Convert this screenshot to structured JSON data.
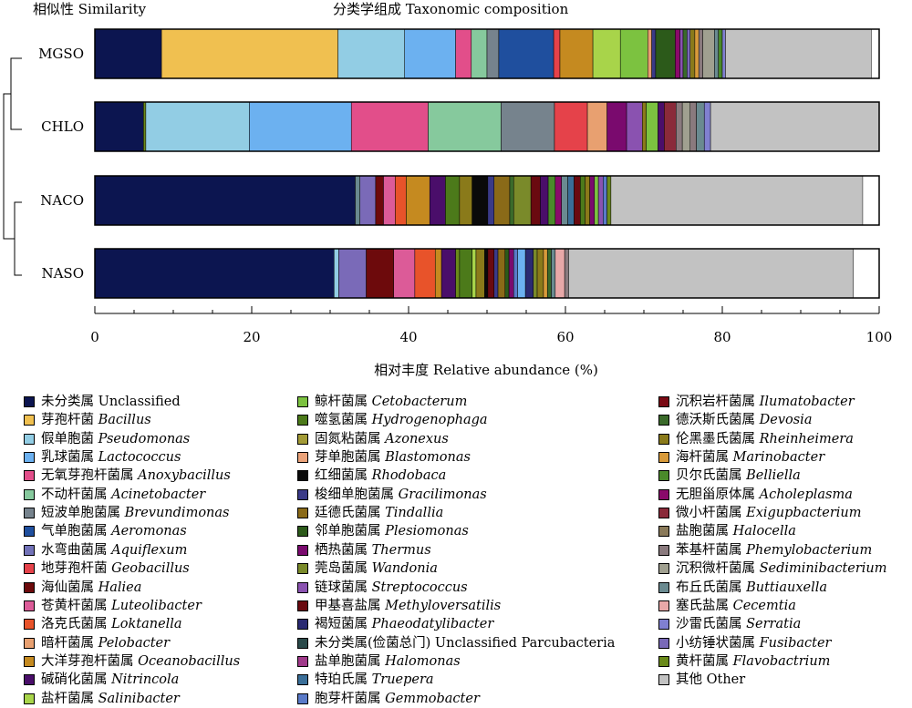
{
  "chart_data": {
    "type": "bar",
    "orientation": "horizontal-stacked",
    "title": "分类学组成 Taxonomic composition",
    "dendrogram_title": "相似性 Similarity",
    "xlabel": "相对丰度 Relative abundance (%)",
    "xlim": [
      0,
      100
    ],
    "xticks": [
      "0",
      "20",
      "40",
      "60",
      "80",
      "100"
    ],
    "grid": false,
    "legend_position": "bottom",
    "categories": [
      "MGSO",
      "CHLO",
      "NACO",
      "NASO"
    ],
    "taxa": [
      {
        "cn": "未分类属",
        "it": "",
        "en": "Unclassified",
        "color": "#0c1550"
      },
      {
        "cn": "芽孢杆菌",
        "it": "Bacillus",
        "en": "",
        "color": "#f0c050"
      },
      {
        "cn": "假单胞菌",
        "it": "Pseudomonas",
        "en": "",
        "color": "#92cde4"
      },
      {
        "cn": "乳球菌属",
        "it": "Lactococcus",
        "en": "",
        "color": "#6cb1f0"
      },
      {
        "cn": "无氧芽孢杆菌属",
        "it": "Anoxybacillus",
        "en": "",
        "color": "#e24e8a"
      },
      {
        "cn": "不动杆菌属",
        "it": "Acinetobacter",
        "en": "",
        "color": "#86c99d"
      },
      {
        "cn": "短波单胞菌属",
        "it": "Brevundimonas",
        "en": "",
        "color": "#76838d"
      },
      {
        "cn": "气单胞菌属",
        "it": "Aeromonas",
        "en": "",
        "color": "#1f4f9e"
      },
      {
        "cn": "水弯曲菌属",
        "it": "Aquiflexum",
        "en": "",
        "color": "#7272b8"
      },
      {
        "cn": "地芽孢杆菌",
        "it": "Geobacillus",
        "en": "",
        "color": "#e5424a"
      },
      {
        "cn": "海仙菌属",
        "it": "Haliea",
        "en": "",
        "color": "#6d0a0c"
      },
      {
        "cn": "苍黄杆菌属",
        "it": "Luteolibacter",
        "en": "",
        "color": "#dc5b98"
      },
      {
        "cn": "洛克氏菌属",
        "it": "Loktanella",
        "en": "",
        "color": "#e8532a"
      },
      {
        "cn": "暗杆菌属",
        "it": "Pelobacter",
        "en": "",
        "color": "#e8a070"
      },
      {
        "cn": "大洋芽孢杆菌属",
        "it": "Oceanobacillus",
        "en": "",
        "color": "#c58a20"
      },
      {
        "cn": "碱硝化菌属",
        "it": "Nitrincola",
        "en": "",
        "color": "#4a0e6a"
      },
      {
        "cn": "盐杆菌属",
        "it": "Salinibacter",
        "en": "",
        "color": "#a8d44a"
      },
      {
        "cn": "鲸杆菌属",
        "it": "Cetobacterum",
        "en": "",
        "color": "#7cc240"
      },
      {
        "cn": "噬氢菌属",
        "it": "Hydrogenophaga",
        "en": "",
        "color": "#4c7a1a"
      },
      {
        "cn": "固氮粘菌属",
        "it": "Azonexus",
        "en": "",
        "color": "#a29a36"
      },
      {
        "cn": "芽单胞菌属",
        "it": "Blastomonas",
        "en": "",
        "color": "#eba37a"
      },
      {
        "cn": "红细菌属",
        "it": "Rhodobaca",
        "en": "",
        "color": "#0a0a0a"
      },
      {
        "cn": "梭细单胞菌属",
        "it": "Gracilimonas",
        "en": "",
        "color": "#3a3a88"
      },
      {
        "cn": "廷德氏菌属",
        "it": "Tindallia",
        "en": "",
        "color": "#8a6a18"
      },
      {
        "cn": "邻单胞菌属",
        "it": "Plesiomonas",
        "en": "",
        "color": "#2c5a1a"
      },
      {
        "cn": "栖热菌属",
        "it": "Thermus",
        "en": "",
        "color": "#7a0a6e"
      },
      {
        "cn": "莞岛菌属",
        "it": "Wandonia",
        "en": "",
        "color": "#7a8a2a"
      },
      {
        "cn": "链球菌属",
        "it": "Streptococcus",
        "en": "",
        "color": "#8a52b0"
      },
      {
        "cn": "甲基喜盐属",
        "it": "Methyloversatilis",
        "en": "",
        "color": "#6a0a10"
      },
      {
        "cn": "褐短菌属",
        "it": "Phaeodatylibacter",
        "en": "",
        "color": "#2a2a72"
      },
      {
        "cn": "未分类属(俭菌总门)",
        "it": "",
        "en": "Unclassified Parcubacteria",
        "color": "#2a4a4a"
      },
      {
        "cn": "盐单胞菌属",
        "it": "Halomonas",
        "en": "",
        "color": "#a03a8a"
      },
      {
        "cn": "特珀氏属",
        "it": "Truepera",
        "en": "",
        "color": "#3a6e98"
      },
      {
        "cn": "胞芽杆菌属",
        "it": "Gemmobacter",
        "en": "",
        "color": "#5a7ac8"
      },
      {
        "cn": "沉积岩杆菌属",
        "it": "Ilumatobacter",
        "en": "",
        "color": "#7a0a14"
      },
      {
        "cn": "德沃斯氏菌属",
        "it": "Devosia",
        "en": "",
        "color": "#3a6a2a"
      },
      {
        "cn": "伦黑墨氏菌属",
        "it": "Rheinheimera",
        "en": "",
        "color": "#8a7a1a"
      },
      {
        "cn": "海杆菌属",
        "it": "Marinobacter",
        "en": "",
        "color": "#d89a3a"
      },
      {
        "cn": "贝尔氏菌属",
        "it": "Belliella",
        "en": "",
        "color": "#4a8a2a"
      },
      {
        "cn": "无胆甾原体属",
        "it": "Acholeplasma",
        "en": "",
        "color": "#8a0a6a"
      },
      {
        "cn": "微小杆菌属",
        "it": "Exigupbacterium",
        "en": "",
        "color": "#8a2a3a"
      },
      {
        "cn": "盐胞菌属",
        "it": "Halocella",
        "en": "",
        "color": "#8a7a5a"
      },
      {
        "cn": "苯基杆菌属",
        "it": "Phemylobacterium",
        "en": "",
        "color": "#8a7a7e"
      },
      {
        "cn": "沉积微杆菌属",
        "it": "Sediminibacterium",
        "en": "",
        "color": "#a0a090"
      },
      {
        "cn": "布丘氏菌属",
        "it": "Buttiauxella",
        "en": "",
        "color": "#6a8a90"
      },
      {
        "cn": "塞氏盐属",
        "it": "Cecemtia",
        "en": "",
        "color": "#e8a8a8"
      },
      {
        "cn": "沙雷氏菌属",
        "it": "Serratia",
        "en": "",
        "color": "#8080d0"
      },
      {
        "cn": "小纺锤状菌属",
        "it": "Fusibacter",
        "en": "",
        "color": "#7a6ab8"
      },
      {
        "cn": "黄杆菌属",
        "it": "Flavobactrium",
        "en": "",
        "color": "#6a8a1a"
      },
      {
        "cn": "其他",
        "it": "",
        "en": "Other",
        "color": "#c2c2c2"
      }
    ],
    "series": [
      {
        "name": "MGSO",
        "segments": [
          [
            "未分类属",
            8.5
          ],
          [
            "芽孢杆菌",
            22.5
          ],
          [
            "假单胞菌",
            8.5
          ],
          [
            "乳球菌属",
            6.5
          ],
          [
            "无氧芽孢杆菌属",
            2.0
          ],
          [
            "不动杆菌属",
            2.0
          ],
          [
            "短波单胞菌属",
            1.5
          ],
          [
            "气单胞菌属",
            7.0
          ],
          [
            "地芽孢杆菌",
            0.8
          ],
          [
            "大洋芽孢杆菌属",
            4.2
          ],
          [
            "盐杆菌属",
            3.5
          ],
          [
            "鲸杆菌属",
            3.5
          ],
          [
            "暗杆菌属",
            0.5
          ],
          [
            "梭细单胞菌属",
            0.5
          ],
          [
            "邻单胞菌属",
            2.5
          ],
          [
            "无胆甾原体属",
            0.6
          ],
          [
            "链球菌属",
            0.4
          ],
          [
            "德沃斯氏菌属",
            0.5
          ],
          [
            "小纺锤状菌属",
            0.4
          ],
          [
            "伦黑墨氏菌属",
            0.6
          ],
          [
            "海杆菌属",
            0.5
          ],
          [
            "苯基杆菌属",
            0.5
          ],
          [
            "沉积微杆菌属",
            1.5
          ],
          [
            "布丘氏菌属",
            0.5
          ],
          [
            "贝尔氏菌属",
            0.5
          ],
          [
            "沙雷氏菌属",
            0.4
          ],
          [
            "其他",
            18.6
          ]
        ]
      },
      {
        "name": "CHLO",
        "segments": [
          [
            "未分类属",
            6.2
          ],
          [
            "黄杆菌属",
            0.3
          ],
          [
            "假单胞菌",
            13.2
          ],
          [
            "乳球菌属",
            13.0
          ],
          [
            "无氧芽孢杆菌属",
            9.8
          ],
          [
            "不动杆菌属",
            9.3
          ],
          [
            "短波单胞菌属",
            6.8
          ],
          [
            "地芽孢杆菌",
            4.2
          ],
          [
            "暗杆菌属",
            2.5
          ],
          [
            "栖热菌属",
            2.5
          ],
          [
            "链球菌属",
            2.0
          ],
          [
            "伦黑墨氏菌属",
            0.5
          ],
          [
            "鲸杆菌属",
            1.5
          ],
          [
            "碱硝化菌属",
            0.8
          ],
          [
            "微小杆菌属",
            1.5
          ],
          [
            "苯基杆菌属",
            0.8
          ],
          [
            "沉积微杆菌属",
            1.0
          ],
          [
            "苯基杆菌属",
            0.8
          ],
          [
            "布丘氏菌属",
            1.0
          ],
          [
            "沙雷氏菌属",
            0.8
          ],
          [
            "其他",
            21.5
          ]
        ]
      },
      {
        "name": "NACO",
        "segments": [
          [
            "未分类属",
            33.2
          ],
          [
            "布丘氏菌属",
            0.6
          ],
          [
            "小纺锤状菌属",
            2.0
          ],
          [
            "海仙菌属",
            1.0
          ],
          [
            "苍黄杆菌属",
            1.5
          ],
          [
            "洛克氏菌属",
            1.4
          ],
          [
            "大洋芽孢杆菌属",
            3.0
          ],
          [
            "碱硝化菌属",
            2.0
          ],
          [
            "噬氢菌属",
            1.8
          ],
          [
            "伦黑墨氏菌属",
            1.6
          ],
          [
            "红细菌属",
            2.0
          ],
          [
            "梭细单胞菌属",
            0.8
          ],
          [
            "廷德氏菌属",
            2.0
          ],
          [
            "德沃斯氏菌属",
            0.5
          ],
          [
            "莞岛菌属",
            2.2
          ],
          [
            "甲基喜盐属",
            1.2
          ],
          [
            "碱硝化菌属",
            1.0
          ],
          [
            "贝尔氏菌属",
            0.9
          ],
          [
            "无胆甾原体属",
            0.8
          ],
          [
            "布丘氏菌属",
            0.8
          ],
          [
            "特珀氏属",
            0.8
          ],
          [
            "甲基喜盐属",
            0.8
          ],
          [
            "噬氢菌属",
            0.6
          ],
          [
            "伦黑墨氏菌属",
            0.6
          ],
          [
            "栖热菌属",
            0.6
          ],
          [
            "鲸杆菌属",
            0.5
          ],
          [
            "链球菌属",
            0.6
          ],
          [
            "胞芽杆菌属",
            0.5
          ],
          [
            "黄杆菌属",
            0.5
          ],
          [
            "其他",
            32.1
          ]
        ]
      },
      {
        "name": "NASO",
        "segments": [
          [
            "未分类属",
            30.5
          ],
          [
            "假单胞菌",
            0.6
          ],
          [
            "小纺锤状菌属",
            3.5
          ],
          [
            "海仙菌属",
            3.5
          ],
          [
            "苍黄杆菌属",
            2.7
          ],
          [
            "洛克氏菌属",
            2.6
          ],
          [
            "大洋芽孢杆菌属",
            0.8
          ],
          [
            "碱硝化菌属",
            1.8
          ],
          [
            "黄杆菌属",
            0.5
          ],
          [
            "噬氢菌属",
            1.6
          ],
          [
            "盐杆菌属",
            0.5
          ],
          [
            "伦黑墨氏菌属",
            1.1
          ],
          [
            "红细菌属",
            0.4
          ],
          [
            "甲基喜盐属",
            0.8
          ],
          [
            "梭细单胞菌属",
            0.5
          ],
          [
            "廷德氏菌属",
            0.9
          ],
          [
            "邻单胞菌属",
            0.5
          ],
          [
            "栖热菌属",
            0.6
          ],
          [
            "胞芽杆菌属",
            0.5
          ],
          [
            "乳球菌属",
            1.0
          ],
          [
            "褐短菌属",
            1.0
          ],
          [
            "莞岛菌属",
            0.5
          ],
          [
            "伦黑墨氏菌属",
            0.8
          ],
          [
            "海杆菌属",
            0.5
          ],
          [
            "德沃斯氏菌属",
            0.5
          ],
          [
            "布丘氏菌属",
            0.5
          ],
          [
            "塞氏盐属",
            1.2
          ],
          [
            "苯基杆菌属",
            0.5
          ],
          [
            "其他",
            36.3
          ]
        ]
      }
    ]
  }
}
